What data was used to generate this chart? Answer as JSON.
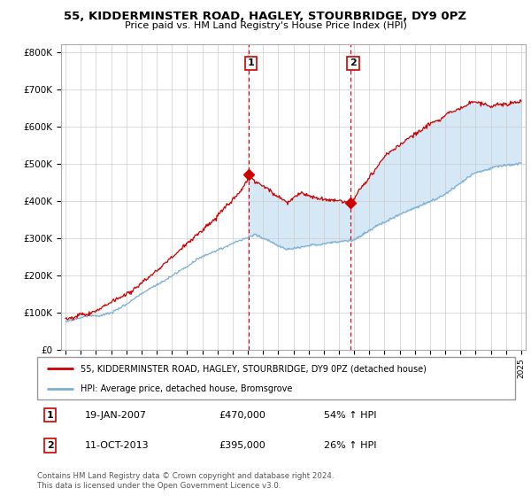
{
  "title": "55, KIDDERMINSTER ROAD, HAGLEY, STOURBRIDGE, DY9 0PZ",
  "subtitle": "Price paid vs. HM Land Registry's House Price Index (HPI)",
  "ylabel_ticks": [
    "£0",
    "£100K",
    "£200K",
    "£300K",
    "£400K",
    "£500K",
    "£600K",
    "£700K",
    "£800K"
  ],
  "ytick_values": [
    0,
    100000,
    200000,
    300000,
    400000,
    500000,
    600000,
    700000,
    800000
  ],
  "ylim": [
    0,
    820000
  ],
  "xlim_start": 1994.7,
  "xlim_end": 2025.3,
  "sale1_x": 2007.05,
  "sale1_y": 470000,
  "sale2_x": 2013.78,
  "sale2_y": 395000,
  "legend_entry1": "55, KIDDERMINSTER ROAD, HAGLEY, STOURBRIDGE, DY9 0PZ (detached house)",
  "legend_entry2": "HPI: Average price, detached house, Bromsgrove",
  "table_row1": [
    "1",
    "19-JAN-2007",
    "£470,000",
    "54% ↑ HPI"
  ],
  "table_row2": [
    "2",
    "11-OCT-2013",
    "£395,000",
    "26% ↑ HPI"
  ],
  "footnote": "Contains HM Land Registry data © Crown copyright and database right 2024.\nThis data is licensed under the Open Government Licence v3.0.",
  "red_color": "#cc0000",
  "blue_color": "#7bafd4",
  "shade_color": "#d6e8f5",
  "background_color": "#ffffff",
  "grid_color": "#cccccc"
}
